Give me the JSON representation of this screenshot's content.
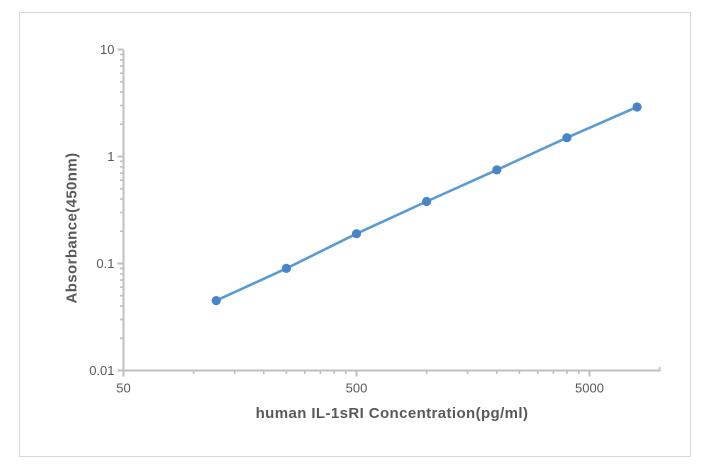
{
  "window": {
    "background": "#ffffff",
    "frame_border_color": "#d9d9d9"
  },
  "chart_data": {
    "type": "line",
    "title": "",
    "xlabel": "human IL-1sRI Concentration(pg/ml)",
    "ylabel": "Absorbance(450nm)",
    "x_scale": "log",
    "y_scale": "log",
    "xlim": [
      50,
      10000
    ],
    "ylim": [
      0.01,
      10
    ],
    "x": [
      125,
      250,
      500,
      1000,
      2000,
      4000,
      8000
    ],
    "y": [
      0.045,
      0.09,
      0.19,
      0.38,
      0.75,
      1.5,
      2.9
    ],
    "x_major_ticks": [
      50,
      500,
      5000
    ],
    "x_tick_labels": [
      "50",
      "500",
      "5000"
    ],
    "y_major_ticks": [
      0.01,
      0.1,
      1,
      10
    ],
    "y_tick_labels": [
      "0.01",
      "0.1",
      "1",
      "10"
    ],
    "grid": false,
    "legend": false,
    "line_color": "#5B9BD5",
    "marker_color": "#4A84C8",
    "axis_color": "#BFBFBF",
    "tick_label_color": "#595959",
    "axis_title_color": "#595959"
  }
}
